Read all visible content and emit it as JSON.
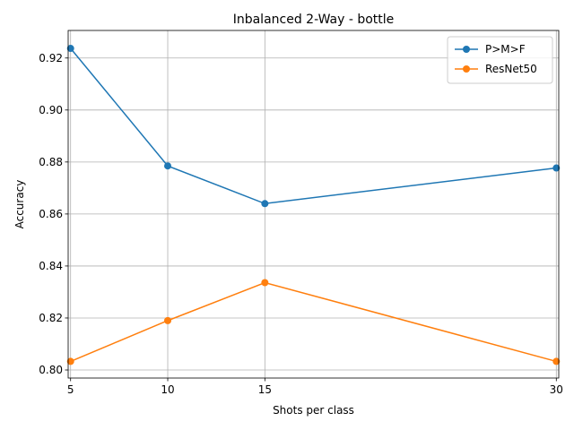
{
  "chart_data": {
    "type": "line",
    "title": "Inbalanced 2-Way - bottle",
    "xlabel": "Shots per class",
    "ylabel": "Accuracy",
    "x": [
      5,
      10,
      15,
      30
    ],
    "xticks": [
      5,
      10,
      15,
      30
    ],
    "xtick_labels": [
      "5",
      "10",
      "15",
      "30"
    ],
    "yticks": [
      0.8,
      0.82,
      0.84,
      0.86,
      0.88,
      0.9,
      0.92
    ],
    "ytick_labels": [
      "0.80",
      "0.82",
      "0.84",
      "0.86",
      "0.88",
      "0.90",
      "0.92"
    ],
    "xlim": [
      4.875,
      30.125
    ],
    "ylim": [
      0.7969,
      0.9306
    ],
    "grid": true,
    "legend_position": "top-right",
    "series": [
      {
        "name": "P>M>F",
        "color": "#1f77b4",
        "values": [
          0.9237,
          0.8785,
          0.864,
          0.8777
        ]
      },
      {
        "name": "ResNet50",
        "color": "#ff7f0e",
        "values": [
          0.8033,
          0.819,
          0.8336,
          0.8033
        ]
      }
    ]
  }
}
